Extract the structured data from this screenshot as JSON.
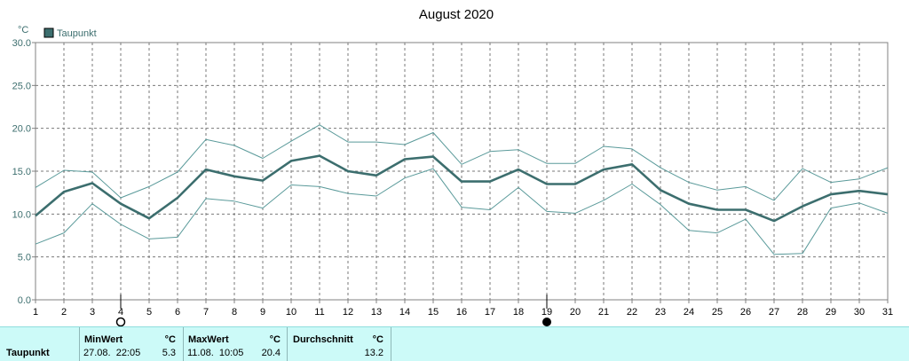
{
  "chart_data": {
    "type": "line",
    "title": "August 2020",
    "unit": "°C",
    "ylim": [
      0,
      30
    ],
    "yticks": [
      "0.0",
      "5.0",
      "10.0",
      "15.0",
      "20.0",
      "25.0",
      "30.0"
    ],
    "x": [
      "1",
      "2",
      "3",
      "4",
      "5",
      "6",
      "7",
      "8",
      "9",
      "10",
      "11",
      "12",
      "13",
      "14",
      "15",
      "16",
      "17",
      "18",
      "19",
      "20",
      "21",
      "22",
      "23",
      "24",
      "25",
      "26",
      "27",
      "28",
      "29",
      "30",
      "31"
    ],
    "grid": true,
    "legend": "top-left",
    "series": [
      {
        "name": "Taupunkt",
        "role": "mean",
        "color": "#3c6e6e",
        "values": [
          9.8,
          12.6,
          13.6,
          11.2,
          9.5,
          11.9,
          15.2,
          14.4,
          13.9,
          16.2,
          16.8,
          15.0,
          14.5,
          16.4,
          16.7,
          13.8,
          13.8,
          15.2,
          13.5,
          13.5,
          15.2,
          15.8,
          12.8,
          11.2,
          10.5,
          10.5,
          9.2,
          10.9,
          12.3,
          12.7,
          12.3
        ]
      },
      {
        "role": "max",
        "color": "#5a9a9a",
        "values": [
          13.1,
          15.1,
          14.9,
          11.9,
          13.2,
          14.9,
          18.7,
          18.0,
          16.5,
          18.5,
          20.4,
          18.4,
          18.4,
          18.1,
          19.5,
          15.8,
          17.3,
          17.5,
          15.9,
          15.9,
          17.9,
          17.6,
          15.4,
          13.7,
          12.8,
          13.2,
          11.6,
          15.3,
          13.7,
          14.1,
          15.4
        ]
      },
      {
        "role": "min",
        "color": "#5a9a9a",
        "values": [
          6.5,
          7.8,
          11.2,
          8.8,
          7.1,
          7.3,
          11.8,
          11.5,
          10.7,
          13.4,
          13.2,
          12.4,
          12.1,
          14.2,
          15.3,
          10.8,
          10.5,
          13.1,
          10.3,
          10.1,
          11.6,
          13.5,
          11.1,
          8.1,
          7.8,
          9.4,
          5.3,
          5.4,
          10.7,
          11.3,
          10.1
        ]
      }
    ],
    "moon_markers": [
      {
        "day": 4,
        "phase": "full-moon"
      },
      {
        "day": 19,
        "phase": "new-moon"
      }
    ]
  },
  "stats": {
    "series_label": "Taupunkt",
    "min": {
      "header": "MinWert",
      "unit": "°C",
      "datetime": "27.08.  22:05",
      "value": "5.3"
    },
    "max": {
      "header": "MaxWert",
      "unit": "°C",
      "datetime": "11.08.  10:05",
      "value": "20.4"
    },
    "avg": {
      "header": "Durchschnitt",
      "unit": "°C",
      "value": "13.2"
    }
  }
}
